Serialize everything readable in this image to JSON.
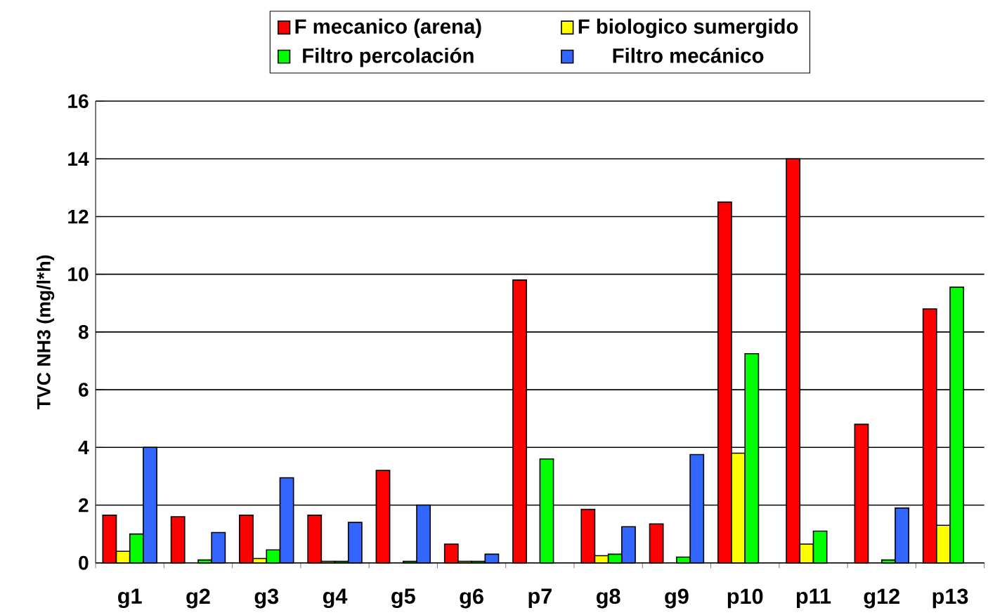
{
  "chart_data": {
    "type": "bar",
    "ylabel": "TVC NH3 (mg/l*h)",
    "categories": [
      "g1",
      "g2",
      "g3",
      "g4",
      "g5",
      "g6",
      "p7",
      "g8",
      "g9",
      "p10",
      "p11",
      "g12",
      "p13"
    ],
    "series": [
      {
        "name": "F mecanico (arena)",
        "color": "#ff0000",
        "values": [
          1.65,
          1.6,
          1.65,
          1.65,
          3.2,
          0.65,
          9.8,
          1.85,
          1.35,
          12.5,
          14.0,
          4.8,
          8.8
        ]
      },
      {
        "name": "F biologico sumergido",
        "color": "#ffff00",
        "values": [
          0.4,
          null,
          0.15,
          0.05,
          null,
          0.05,
          null,
          0.25,
          null,
          3.8,
          0.65,
          null,
          1.3
        ]
      },
      {
        "name": "Filtro percolación",
        "color": "#00ff00",
        "values": [
          1.0,
          0.1,
          0.45,
          0.05,
          0.05,
          0.05,
          3.6,
          0.3,
          0.2,
          7.25,
          1.1,
          0.1,
          9.55
        ]
      },
      {
        "name": "Filtro mecánico",
        "color": "#3366ff",
        "values": [
          4.0,
          1.05,
          2.95,
          1.4,
          2.0,
          0.3,
          null,
          1.25,
          3.75,
          null,
          null,
          1.9,
          null
        ]
      }
    ],
    "ylim": [
      0,
      16
    ],
    "yticks": [
      0,
      2,
      4,
      6,
      8,
      10,
      12,
      14,
      16
    ],
    "grid": "y",
    "legend": "top"
  }
}
